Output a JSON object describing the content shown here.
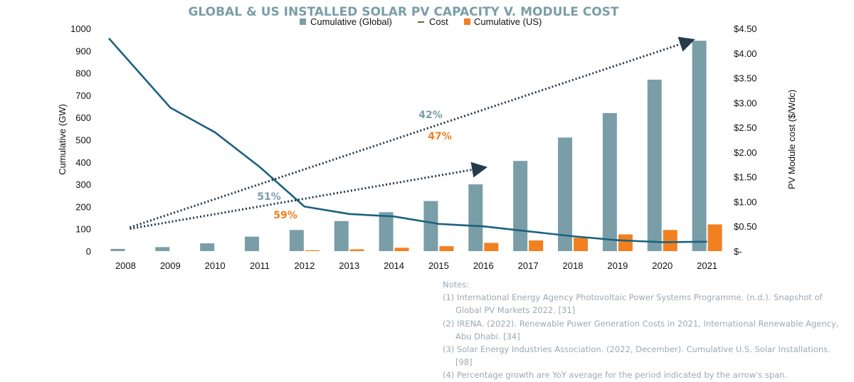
{
  "chart_data": {
    "type": "bar",
    "title": "GLOBAL & US INSTALLED SOLAR PV CAPACITY V. MODULE COST",
    "categories": [
      "2008",
      "2009",
      "2010",
      "2011",
      "2012",
      "2013",
      "2014",
      "2015",
      "2016",
      "2017",
      "2018",
      "2019",
      "2020",
      "2021"
    ],
    "series": [
      {
        "name": "Cumulative (Global)",
        "kind": "bar",
        "axis": "left",
        "color": "#7a9ea8",
        "values": [
          10,
          18,
          35,
          65,
          95,
          135,
          175,
          225,
          300,
          405,
          510,
          620,
          770,
          945
        ]
      },
      {
        "name": "Cost",
        "kind": "line",
        "axis": "right",
        "color": "#1b627e",
        "values": [
          4.3,
          2.9,
          2.4,
          1.7,
          0.9,
          0.75,
          0.7,
          0.55,
          0.5,
          0.4,
          0.3,
          0.22,
          0.18,
          0.19
        ]
      },
      {
        "name": "Cumulative (US)",
        "kind": "bar",
        "axis": "left",
        "color": "#f18020",
        "values": [
          0,
          0,
          0,
          0,
          4,
          8,
          15,
          22,
          37,
          48,
          60,
          75,
          95,
          120
        ]
      }
    ],
    "ylabel": "Cumulative (GW)",
    "ylim": [
      0,
      1000
    ],
    "yticks": [
      "0",
      "100",
      "200",
      "300",
      "400",
      "500",
      "600",
      "700",
      "800",
      "900",
      "1000"
    ],
    "y2label": "PV Module cost ($/Wdc)",
    "y2lim": [
      0,
      4.5
    ],
    "y2ticks": [
      "$-",
      "$0.50",
      "$1.00",
      "$1.50",
      "$2.00",
      "$2.50",
      "$3.00",
      "$3.50",
      "$4.00",
      "$4.50"
    ],
    "legend_position": "top-center",
    "grid": false,
    "annotations": [
      {
        "label_global": "42%",
        "label_us": "47%",
        "from": [
          "2008",
          100
        ],
        "to": [
          "2021",
          945
        ]
      },
      {
        "label_global": "51%",
        "label_us": "59%",
        "from": [
          "2008",
          100
        ],
        "to": [
          "2016",
          375
        ]
      }
    ]
  },
  "colors": {
    "title": "#7a9ea8",
    "global_bar": "#7a9ea8",
    "us_bar": "#f18020",
    "cost_line": "#1b627e",
    "arrow": "#243b4a",
    "notes_text": "#9aaab3"
  },
  "notes": {
    "heading": "Notes:",
    "items": [
      "(1) International Energy Agency Photovoltaic Power Systems Programme. (n.d.). Snapshot of Global PV Markets 2022. [31]",
      "(2) IRENA. (2022). Renewable Power Generation Costs in 2021, International Renewable Agency, Abu Dhabi. [34]",
      "(3) Solar Energy Industries Association. (2022, December). Cumulative U.S. Solar Installations. [98]",
      "(4) Percentage growth are YoY average for the period indicated by the arrow's span."
    ]
  }
}
